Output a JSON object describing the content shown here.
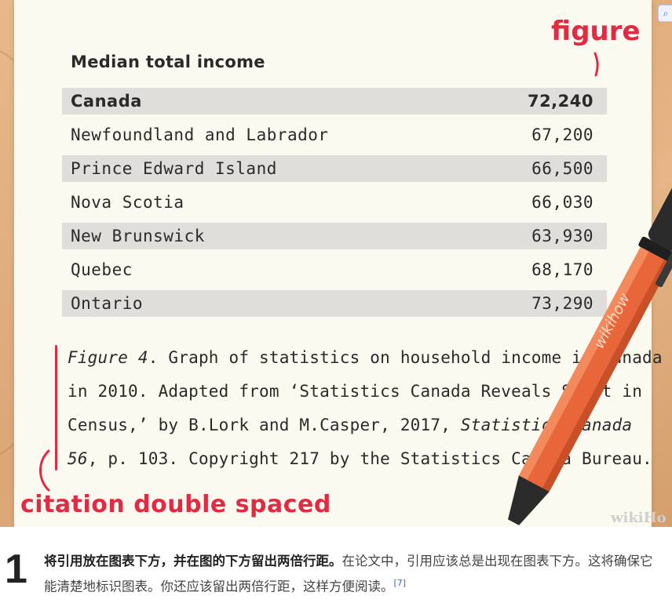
{
  "table": {
    "title": "Median total income",
    "rows": [
      {
        "name": "Canada",
        "value": "72,240"
      },
      {
        "name": "Newfoundland and Labrador",
        "value": "67,200"
      },
      {
        "name": "Prince Edward Island",
        "value": "66,500"
      },
      {
        "name": "Nova Scotia",
        "value": "66,030"
      },
      {
        "name": "New Brunswick",
        "value": "63,930"
      },
      {
        "name": "Quebec",
        "value": "68,170"
      },
      {
        "name": "Ontario",
        "value": "73,290"
      }
    ]
  },
  "caption": {
    "figure_label": "Figure 4",
    "line1_rest": ". Graph of statistics on household income in Canada",
    "line2": "in 2010. Adapted from ‘Statistics Canada Reveals Shift in",
    "line3_start": "Census,’ by B.Lork and M.Casper, 2017, ",
    "line3_italic": "Statistics Canada",
    "line4_italic": "56",
    "line4_rest": ", p. 103. Copyright 217 by the Statistics Canada Bureau."
  },
  "annotations": {
    "figure_note": "figure",
    "citation_note": "citation double spaced",
    "accent_color": "#e22a43"
  },
  "pen": {
    "brand": "wikihow",
    "body_color": "#e8663a",
    "barrel_color": "#2b2b2b"
  },
  "watermark": "wikiHo",
  "step": {
    "number": "1",
    "bold_text": "将引用放在图表下方，并在图的下方留出两倍行距。",
    "text": "在论文中，引用应该总是出现在图表下方。这将确保它能清楚地标识图表。你还应该留出两倍行距，这样方便阅读。",
    "ref": "[7]"
  }
}
